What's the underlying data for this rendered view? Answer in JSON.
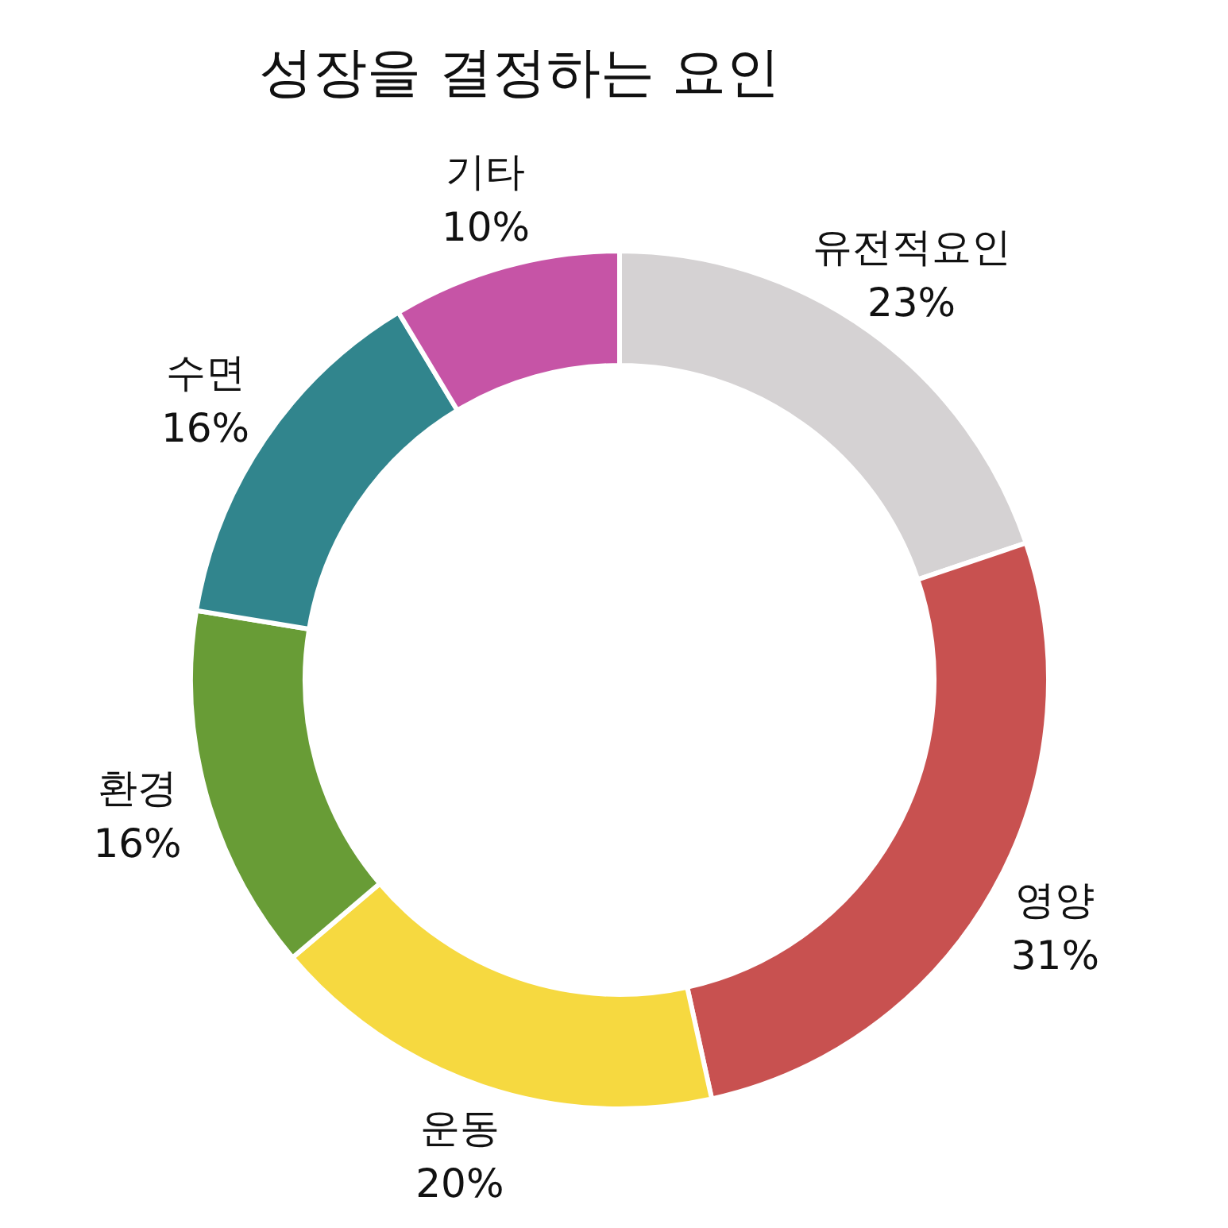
{
  "chart_data": {
    "type": "donut",
    "title": "성장을 결정하는 요인",
    "categories": [
      "유전적요인",
      "영양",
      "운동",
      "환경",
      "수면",
      "기타"
    ],
    "values": [
      23,
      31,
      20,
      16,
      16,
      10
    ],
    "value_labels": [
      "23%",
      "31%",
      "20%",
      "16%",
      "16%",
      "10%"
    ],
    "colors": [
      "#d5d2d3",
      "#c85150",
      "#f6d940",
      "#689c36",
      "#31858d",
      "#c654a6"
    ],
    "legend": false
  }
}
